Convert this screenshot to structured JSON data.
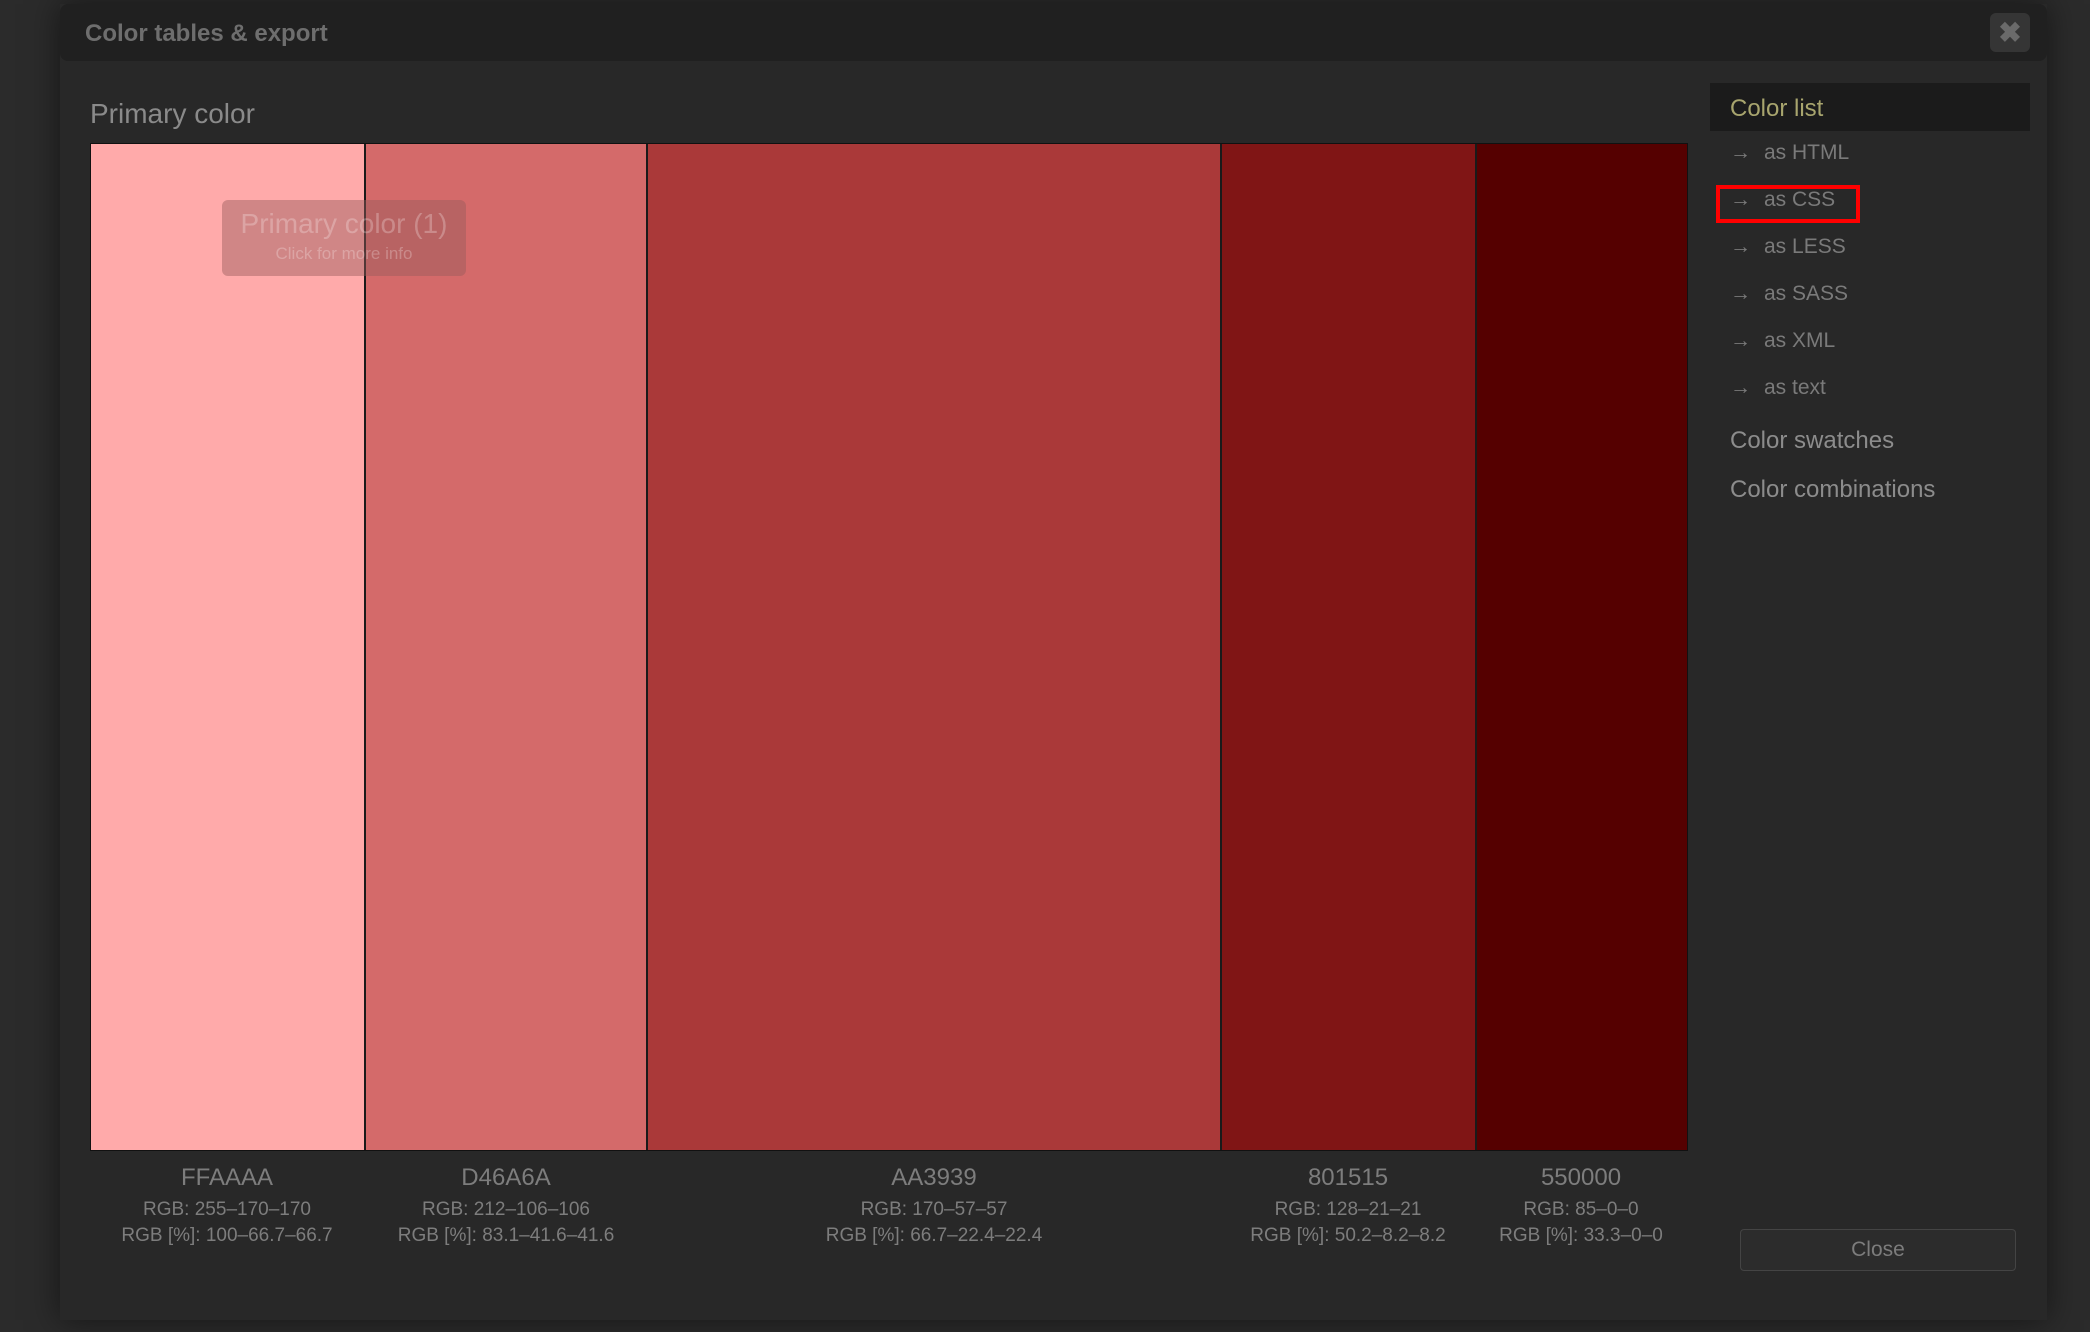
{
  "dialog": {
    "title": "Color tables & export",
    "close_icon": "close-x-icon",
    "close_button": "Close"
  },
  "main": {
    "heading": "Primary color",
    "tooltip": {
      "title": "Primary color (1)",
      "subtitle": "Click for more info"
    },
    "swatches": [
      {
        "hex": "FFAAAA",
        "color": "#FFAAAA",
        "rgb": "RGB: 255–170–170",
        "rgb_pct": "RGB [%]: 100–66.7–66.7"
      },
      {
        "hex": "D46A6A",
        "color": "#D46A6A",
        "rgb": "RGB: 212–106–106",
        "rgb_pct": "RGB [%]: 83.1–41.6–41.6"
      },
      {
        "hex": "AA3939",
        "color": "#AA3939",
        "rgb": "RGB: 170–57–57",
        "rgb_pct": "RGB [%]: 66.7–22.4–22.4"
      },
      {
        "hex": "801515",
        "color": "#801515",
        "rgb": "RGB: 128–21–21",
        "rgb_pct": "RGB [%]: 50.2–8.2–8.2"
      },
      {
        "hex": "550000",
        "color": "#550000",
        "rgb": "RGB: 85–0–0",
        "rgb_pct": "RGB [%]: 33.3–0–0"
      }
    ]
  },
  "sidebar": {
    "active": "Color list",
    "arrow": "→",
    "items": [
      "as HTML",
      "as CSS",
      "as LESS",
      "as SASS",
      "as XML",
      "as text"
    ],
    "sections": [
      "Color swatches",
      "Color combinations"
    ]
  },
  "highlight_color": "#FF0000"
}
